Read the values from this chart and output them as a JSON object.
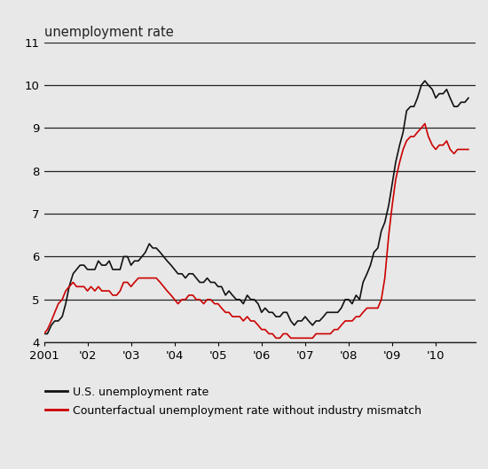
{
  "title": "unemployment rate",
  "background_color": "#e8e8e8",
  "plot_background_color": "#e8e8e8",
  "ylim": [
    4,
    11
  ],
  "yticks": [
    4,
    5,
    6,
    7,
    8,
    9,
    10,
    11
  ],
  "xlabel": "",
  "ylabel": "",
  "line1_color": "#111111",
  "line2_color": "#cc0000",
  "line1_label": "U.S. unemployment rate",
  "line2_label": "Counterfactual unemployment rate without industry mismatch",
  "x_tick_labels": [
    "2001",
    "'02",
    "'03",
    "'04",
    "'05",
    "'06",
    "'07",
    "'08",
    "'09",
    "'10"
  ],
  "x_tick_positions": [
    2001.0,
    2002.0,
    2003.0,
    2004.0,
    2005.0,
    2006.0,
    2007.0,
    2008.0,
    2009.0,
    2010.0
  ],
  "xlim_left": 2001.0,
  "xlim_right": 2010.92,
  "us_unemployment": [
    [
      2001.0,
      4.2
    ],
    [
      2001.08,
      4.2
    ],
    [
      2001.17,
      4.4
    ],
    [
      2001.25,
      4.5
    ],
    [
      2001.33,
      4.5
    ],
    [
      2001.42,
      4.6
    ],
    [
      2001.5,
      4.9
    ],
    [
      2001.58,
      5.3
    ],
    [
      2001.67,
      5.6
    ],
    [
      2001.75,
      5.7
    ],
    [
      2001.83,
      5.8
    ],
    [
      2001.92,
      5.8
    ],
    [
      2002.0,
      5.7
    ],
    [
      2002.08,
      5.7
    ],
    [
      2002.17,
      5.7
    ],
    [
      2002.25,
      5.9
    ],
    [
      2002.33,
      5.8
    ],
    [
      2002.42,
      5.8
    ],
    [
      2002.5,
      5.9
    ],
    [
      2002.58,
      5.7
    ],
    [
      2002.67,
      5.7
    ],
    [
      2002.75,
      5.7
    ],
    [
      2002.83,
      6.0
    ],
    [
      2002.92,
      6.0
    ],
    [
      2003.0,
      5.8
    ],
    [
      2003.08,
      5.9
    ],
    [
      2003.17,
      5.9
    ],
    [
      2003.25,
      6.0
    ],
    [
      2003.33,
      6.1
    ],
    [
      2003.42,
      6.3
    ],
    [
      2003.5,
      6.2
    ],
    [
      2003.58,
      6.2
    ],
    [
      2003.67,
      6.1
    ],
    [
      2003.75,
      6.0
    ],
    [
      2003.83,
      5.9
    ],
    [
      2003.92,
      5.8
    ],
    [
      2004.0,
      5.7
    ],
    [
      2004.08,
      5.6
    ],
    [
      2004.17,
      5.6
    ],
    [
      2004.25,
      5.5
    ],
    [
      2004.33,
      5.6
    ],
    [
      2004.42,
      5.6
    ],
    [
      2004.5,
      5.5
    ],
    [
      2004.58,
      5.4
    ],
    [
      2004.67,
      5.4
    ],
    [
      2004.75,
      5.5
    ],
    [
      2004.83,
      5.4
    ],
    [
      2004.92,
      5.4
    ],
    [
      2005.0,
      5.3
    ],
    [
      2005.08,
      5.3
    ],
    [
      2005.17,
      5.1
    ],
    [
      2005.25,
      5.2
    ],
    [
      2005.33,
      5.1
    ],
    [
      2005.42,
      5.0
    ],
    [
      2005.5,
      5.0
    ],
    [
      2005.58,
      4.9
    ],
    [
      2005.67,
      5.1
    ],
    [
      2005.75,
      5.0
    ],
    [
      2005.83,
      5.0
    ],
    [
      2005.92,
      4.9
    ],
    [
      2006.0,
      4.7
    ],
    [
      2006.08,
      4.8
    ],
    [
      2006.17,
      4.7
    ],
    [
      2006.25,
      4.7
    ],
    [
      2006.33,
      4.6
    ],
    [
      2006.42,
      4.6
    ],
    [
      2006.5,
      4.7
    ],
    [
      2006.58,
      4.7
    ],
    [
      2006.67,
      4.5
    ],
    [
      2006.75,
      4.4
    ],
    [
      2006.83,
      4.5
    ],
    [
      2006.92,
      4.5
    ],
    [
      2007.0,
      4.6
    ],
    [
      2007.08,
      4.5
    ],
    [
      2007.17,
      4.4
    ],
    [
      2007.25,
      4.5
    ],
    [
      2007.33,
      4.5
    ],
    [
      2007.42,
      4.6
    ],
    [
      2007.5,
      4.7
    ],
    [
      2007.58,
      4.7
    ],
    [
      2007.67,
      4.7
    ],
    [
      2007.75,
      4.7
    ],
    [
      2007.83,
      4.8
    ],
    [
      2007.92,
      5.0
    ],
    [
      2008.0,
      5.0
    ],
    [
      2008.08,
      4.9
    ],
    [
      2008.17,
      5.1
    ],
    [
      2008.25,
      5.0
    ],
    [
      2008.33,
      5.4
    ],
    [
      2008.42,
      5.6
    ],
    [
      2008.5,
      5.8
    ],
    [
      2008.58,
      6.1
    ],
    [
      2008.67,
      6.2
    ],
    [
      2008.75,
      6.6
    ],
    [
      2008.83,
      6.8
    ],
    [
      2008.92,
      7.2
    ],
    [
      2009.0,
      7.7
    ],
    [
      2009.08,
      8.2
    ],
    [
      2009.17,
      8.6
    ],
    [
      2009.25,
      8.9
    ],
    [
      2009.33,
      9.4
    ],
    [
      2009.42,
      9.5
    ],
    [
      2009.5,
      9.5
    ],
    [
      2009.58,
      9.7
    ],
    [
      2009.67,
      10.0
    ],
    [
      2009.75,
      10.1
    ],
    [
      2009.83,
      10.0
    ],
    [
      2009.92,
      9.9
    ],
    [
      2010.0,
      9.7
    ],
    [
      2010.08,
      9.8
    ],
    [
      2010.17,
      9.8
    ],
    [
      2010.25,
      9.9
    ],
    [
      2010.33,
      9.7
    ],
    [
      2010.42,
      9.5
    ],
    [
      2010.5,
      9.5
    ],
    [
      2010.58,
      9.6
    ],
    [
      2010.67,
      9.6
    ],
    [
      2010.75,
      9.7
    ]
  ],
  "counterfactual_unemployment": [
    [
      2001.0,
      4.2
    ],
    [
      2001.08,
      4.3
    ],
    [
      2001.17,
      4.5
    ],
    [
      2001.25,
      4.7
    ],
    [
      2001.33,
      4.9
    ],
    [
      2001.42,
      5.0
    ],
    [
      2001.5,
      5.2
    ],
    [
      2001.58,
      5.3
    ],
    [
      2001.67,
      5.4
    ],
    [
      2001.75,
      5.3
    ],
    [
      2001.83,
      5.3
    ],
    [
      2001.92,
      5.3
    ],
    [
      2002.0,
      5.2
    ],
    [
      2002.08,
      5.3
    ],
    [
      2002.17,
      5.2
    ],
    [
      2002.25,
      5.3
    ],
    [
      2002.33,
      5.2
    ],
    [
      2002.42,
      5.2
    ],
    [
      2002.5,
      5.2
    ],
    [
      2002.58,
      5.1
    ],
    [
      2002.67,
      5.1
    ],
    [
      2002.75,
      5.2
    ],
    [
      2002.83,
      5.4
    ],
    [
      2002.92,
      5.4
    ],
    [
      2003.0,
      5.3
    ],
    [
      2003.08,
      5.4
    ],
    [
      2003.17,
      5.5
    ],
    [
      2003.25,
      5.5
    ],
    [
      2003.58,
      5.5
    ],
    [
      2003.67,
      5.4
    ],
    [
      2003.75,
      5.3
    ],
    [
      2003.83,
      5.2
    ],
    [
      2003.92,
      5.1
    ],
    [
      2004.0,
      5.0
    ],
    [
      2004.08,
      4.9
    ],
    [
      2004.17,
      5.0
    ],
    [
      2004.25,
      5.0
    ],
    [
      2004.33,
      5.1
    ],
    [
      2004.42,
      5.1
    ],
    [
      2004.5,
      5.0
    ],
    [
      2004.58,
      5.0
    ],
    [
      2004.67,
      4.9
    ],
    [
      2004.75,
      5.0
    ],
    [
      2004.83,
      5.0
    ],
    [
      2004.92,
      4.9
    ],
    [
      2005.0,
      4.9
    ],
    [
      2005.08,
      4.8
    ],
    [
      2005.17,
      4.7
    ],
    [
      2005.25,
      4.7
    ],
    [
      2005.33,
      4.6
    ],
    [
      2005.42,
      4.6
    ],
    [
      2005.5,
      4.6
    ],
    [
      2005.58,
      4.5
    ],
    [
      2005.67,
      4.6
    ],
    [
      2005.75,
      4.5
    ],
    [
      2005.83,
      4.5
    ],
    [
      2005.92,
      4.4
    ],
    [
      2006.0,
      4.3
    ],
    [
      2006.08,
      4.3
    ],
    [
      2006.17,
      4.2
    ],
    [
      2006.25,
      4.2
    ],
    [
      2006.33,
      4.1
    ],
    [
      2006.42,
      4.1
    ],
    [
      2006.5,
      4.2
    ],
    [
      2006.58,
      4.2
    ],
    [
      2006.67,
      4.1
    ],
    [
      2006.75,
      4.1
    ],
    [
      2006.83,
      4.1
    ],
    [
      2006.92,
      4.1
    ],
    [
      2007.0,
      4.1
    ],
    [
      2007.08,
      4.1
    ],
    [
      2007.17,
      4.1
    ],
    [
      2007.25,
      4.2
    ],
    [
      2007.33,
      4.2
    ],
    [
      2007.42,
      4.2
    ],
    [
      2007.5,
      4.2
    ],
    [
      2007.58,
      4.2
    ],
    [
      2007.67,
      4.3
    ],
    [
      2007.75,
      4.3
    ],
    [
      2007.83,
      4.4
    ],
    [
      2007.92,
      4.5
    ],
    [
      2008.0,
      4.5
    ],
    [
      2008.08,
      4.5
    ],
    [
      2008.17,
      4.6
    ],
    [
      2008.25,
      4.6
    ],
    [
      2008.33,
      4.7
    ],
    [
      2008.42,
      4.8
    ],
    [
      2008.5,
      4.8
    ],
    [
      2008.58,
      4.8
    ],
    [
      2008.67,
      4.8
    ],
    [
      2008.75,
      5.0
    ],
    [
      2008.83,
      5.5
    ],
    [
      2008.92,
      6.5
    ],
    [
      2009.0,
      7.2
    ],
    [
      2009.08,
      7.8
    ],
    [
      2009.17,
      8.2
    ],
    [
      2009.25,
      8.5
    ],
    [
      2009.33,
      8.7
    ],
    [
      2009.42,
      8.8
    ],
    [
      2009.5,
      8.8
    ],
    [
      2009.58,
      8.9
    ],
    [
      2009.67,
      9.0
    ],
    [
      2009.75,
      9.1
    ],
    [
      2009.83,
      8.8
    ],
    [
      2009.92,
      8.6
    ],
    [
      2010.0,
      8.5
    ],
    [
      2010.08,
      8.6
    ],
    [
      2010.17,
      8.6
    ],
    [
      2010.25,
      8.7
    ],
    [
      2010.33,
      8.5
    ],
    [
      2010.42,
      8.4
    ],
    [
      2010.5,
      8.5
    ],
    [
      2010.58,
      8.5
    ],
    [
      2010.67,
      8.5
    ],
    [
      2010.75,
      8.5
    ]
  ]
}
